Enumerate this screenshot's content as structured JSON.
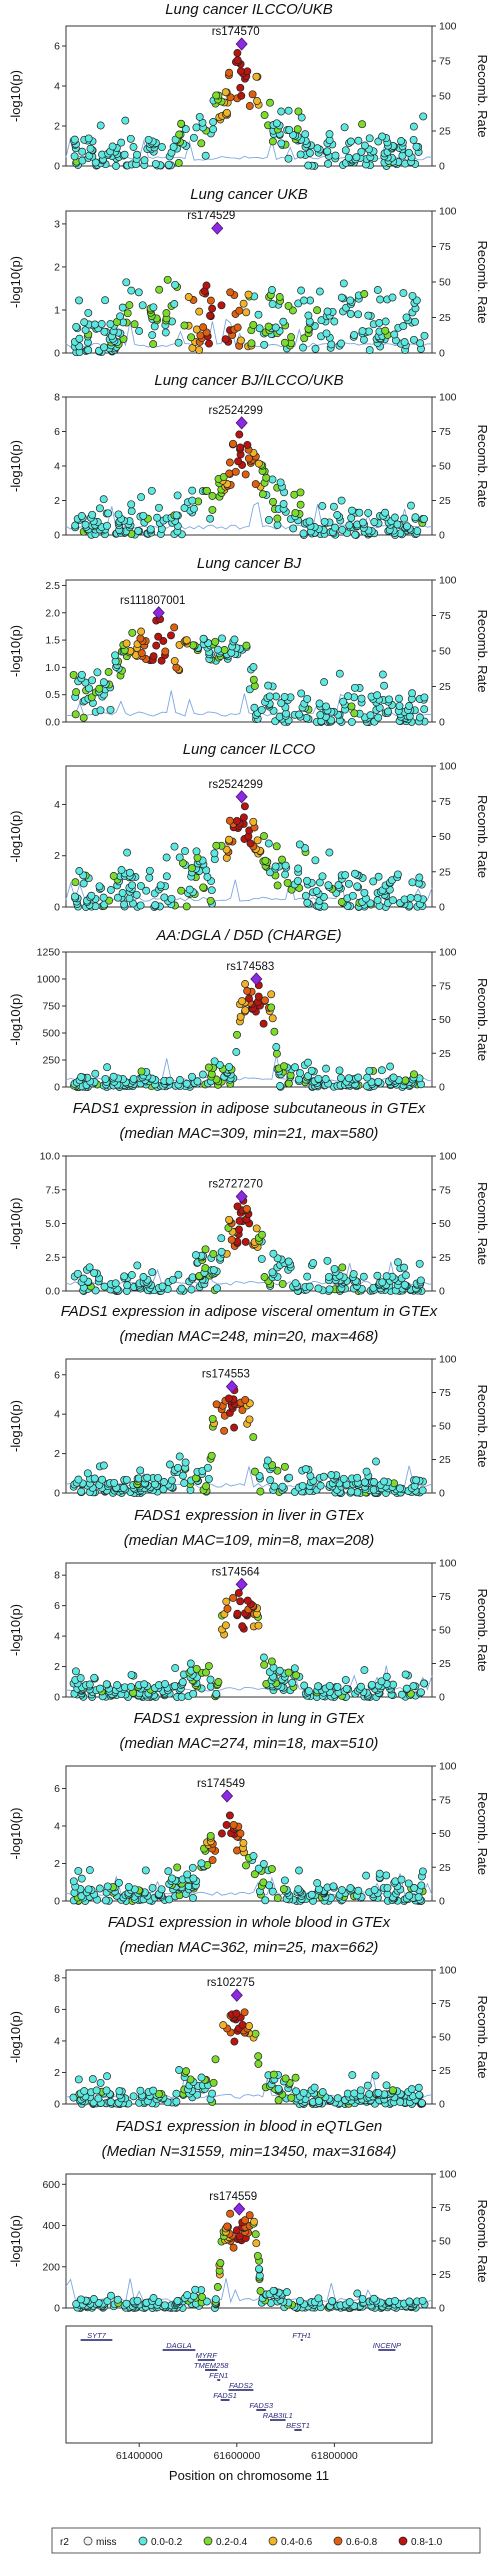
{
  "chart_data": {
    "type": "scatter",
    "x_range": [
      61250000,
      62000000
    ],
    "x_ticks": [
      61400000,
      61600000,
      61800000
    ],
    "x_tick_labels": [
      "61400000",
      "61600000",
      "61800000"
    ],
    "xlabel": "Position on chromosome 11",
    "ylabel": "-log10(p)",
    "ylabel_right": "Recomb. Rate",
    "recomb_ticks": [
      0,
      25,
      50,
      75,
      100
    ],
    "legend": {
      "title": "r2",
      "entries": [
        {
          "label": "miss",
          "color": "#f2f2f2"
        },
        {
          "label": "0.0-0.2",
          "color": "#5ce8e0"
        },
        {
          "label": "0.2-0.4",
          "color": "#7cdc2c"
        },
        {
          "label": "0.4-0.6",
          "color": "#f0b428"
        },
        {
          "label": "0.6-0.8",
          "color": "#e06010"
        },
        {
          "label": "0.8-1.0",
          "color": "#b81410"
        }
      ]
    },
    "panels": [
      {
        "title_lines": [
          "Lung cancer ILCCO/UKB"
        ],
        "lead_snp": "rs174570",
        "lead_x": 61610000,
        "lead_y": 6.1,
        "y_max": 7.0,
        "y_ticks": [
          0,
          2,
          4,
          6
        ],
        "y_tick_labels": [
          "0",
          "2",
          "4",
          "6"
        ],
        "profile": "peak",
        "bg": 1.4,
        "shoulder": 3.2,
        "spread": 60000
      },
      {
        "title_lines": [
          "Lung cancer UKB"
        ],
        "lead_snp": "rs174529",
        "lead_x": 61560000,
        "lead_y": 2.9,
        "y_max": 3.3,
        "y_ticks": [
          0,
          1,
          2,
          3
        ],
        "y_tick_labels": [
          "0",
          "1",
          "2",
          "3"
        ],
        "profile": "broad",
        "bg": 1.0,
        "shoulder": 1.6,
        "spread": 90000
      },
      {
        "title_lines": [
          "Lung cancer BJ/ILCCO/UKB"
        ],
        "lead_snp": "rs2524299",
        "lead_x": 61610000,
        "lead_y": 6.5,
        "y_max": 8.0,
        "y_ticks": [
          0,
          2,
          4,
          6,
          8
        ],
        "y_tick_labels": [
          "0",
          "2",
          "4",
          "6",
          "8"
        ],
        "profile": "peak",
        "bg": 1.3,
        "shoulder": 3.5,
        "spread": 55000
      },
      {
        "title_lines": [
          "Lung cancer BJ"
        ],
        "lead_snp": "rs111807001",
        "lead_x": 61440000,
        "lead_y": 2.0,
        "y_max": 2.6,
        "y_ticks": [
          0,
          0.5,
          1,
          1.5,
          2,
          2.5
        ],
        "y_tick_labels": [
          "0.0",
          "0.5",
          "1.0",
          "1.5",
          "2.0",
          "2.5"
        ],
        "profile": "lowleft",
        "bg": 0.5,
        "shoulder": 1.4,
        "spread": 90000
      },
      {
        "title_lines": [
          "Lung cancer ILCCO"
        ],
        "lead_snp": "rs2524299",
        "lead_x": 61610000,
        "lead_y": 4.3,
        "y_max": 5.5,
        "y_ticks": [
          0,
          2,
          4
        ],
        "y_tick_labels": [
          "0",
          "2",
          "4"
        ],
        "profile": "peak",
        "bg": 1.3,
        "shoulder": 2.4,
        "spread": 60000
      },
      {
        "title_lines": [
          "AA:DGLA / D5D (CHARGE)"
        ],
        "lead_snp": "rs174583",
        "lead_x": 61640000,
        "lead_y": 1000,
        "y_max": 1250,
        "y_ticks": [
          0,
          250,
          500,
          750,
          1000,
          1250
        ],
        "y_tick_labels": [
          "0",
          "250",
          "500",
          "750",
          "1000",
          "1250"
        ],
        "profile": "plateau",
        "bg": 90,
        "shoulder": 300,
        "spread": 50000
      },
      {
        "title_lines": [
          "FADS1 expression in adipose subcutaneous in GTEx",
          "(median MAC=309, min=21, max=580)"
        ],
        "lead_snp": "rs2727270",
        "lead_x": 61610000,
        "lead_y": 7.0,
        "y_max": 10.0,
        "y_ticks": [
          0,
          2.5,
          5,
          7.5,
          10
        ],
        "y_tick_labels": [
          "0.0",
          "2.5",
          "5.0",
          "7.5",
          "10.0"
        ],
        "profile": "peak",
        "bg": 1.1,
        "shoulder": 4.0,
        "spread": 45000
      },
      {
        "title_lines": [
          "FADS1 expression in adipose visceral omentum in GTEx",
          "(median MAC=248, min=20, max=468)"
        ],
        "lead_snp": "rs174553",
        "lead_x": 61590000,
        "lead_y": 5.4,
        "y_max": 6.8,
        "y_ticks": [
          0,
          2,
          4,
          6
        ],
        "y_tick_labels": [
          "0",
          "2",
          "4",
          "6"
        ],
        "profile": "plateau",
        "bg": 0.8,
        "shoulder": 2.2,
        "spread": 55000
      },
      {
        "title_lines": [
          "FADS1 expression in liver in GTEx",
          "(median MAC=109, min=8, max=208)"
        ],
        "lead_snp": "rs174564",
        "lead_x": 61610000,
        "lead_y": 7.4,
        "y_max": 8.8,
        "y_ticks": [
          0,
          2,
          4,
          6,
          8
        ],
        "y_tick_labels": [
          "0",
          "2",
          "4",
          "6",
          "8"
        ],
        "profile": "plateau",
        "bg": 0.9,
        "shoulder": 2.6,
        "spread": 55000
      },
      {
        "title_lines": [
          "FADS1 expression in lung in GTEx",
          "(median MAC=274, min=18, max=510)"
        ],
        "lead_snp": "rs174549",
        "lead_x": 61580000,
        "lead_y": 5.6,
        "y_max": 7.2,
        "y_ticks": [
          0,
          2,
          4,
          6
        ],
        "y_tick_labels": [
          "0",
          "2",
          "4",
          "6"
        ],
        "profile": "peak",
        "bg": 0.8,
        "shoulder": 2.4,
        "spread": 55000
      },
      {
        "title_lines": [
          "FADS1 expression in whole blood in GTEx",
          "(median MAC=362, min=25, max=662)"
        ],
        "lead_snp": "rs102275",
        "lead_x": 61600000,
        "lead_y": 6.9,
        "y_max": 8.5,
        "y_ticks": [
          0,
          2,
          4,
          6,
          8
        ],
        "y_tick_labels": [
          "0",
          "2",
          "4",
          "6",
          "8"
        ],
        "profile": "plateau",
        "bg": 0.9,
        "shoulder": 2.4,
        "spread": 55000
      },
      {
        "title_lines": [
          "FADS1 expression in blood in eQTLGen",
          "(Median N=31559, min=13450, max=31684)"
        ],
        "lead_snp": "rs174559",
        "lead_x": 61605000,
        "lead_y": 480,
        "y_max": 650,
        "y_ticks": [
          0,
          200,
          400,
          600
        ],
        "y_tick_labels": [
          "0",
          "200",
          "400",
          "600"
        ],
        "profile": "plateau",
        "bg": 35,
        "shoulder": 120,
        "spread": 50000
      }
    ],
    "genes": [
      {
        "name": "SYT7",
        "start": 61280000,
        "end": 61345000,
        "row": 0
      },
      {
        "name": "DAGLA",
        "start": 61448000,
        "end": 61515000,
        "row": 1
      },
      {
        "name": "MYRF",
        "start": 61520000,
        "end": 61555000,
        "row": 2
      },
      {
        "name": "TMEM258",
        "start": 61535000,
        "end": 61560000,
        "row": 3
      },
      {
        "name": "FEN1",
        "start": 61560000,
        "end": 61566000,
        "row": 4
      },
      {
        "name": "FADS2",
        "start": 61583000,
        "end": 61634000,
        "row": 5
      },
      {
        "name": "FADS1",
        "start": 61567000,
        "end": 61585000,
        "row": 6
      },
      {
        "name": "FADS3",
        "start": 61640000,
        "end": 61660000,
        "row": 7
      },
      {
        "name": "RAB3IL1",
        "start": 61668000,
        "end": 61700000,
        "row": 8
      },
      {
        "name": "BEST1",
        "start": 61718000,
        "end": 61733000,
        "row": 9
      },
      {
        "name": "FTH1",
        "start": 61731000,
        "end": 61735000,
        "row": 0
      },
      {
        "name": "INCENP",
        "start": 61890000,
        "end": 61925000,
        "row": 1
      }
    ]
  }
}
